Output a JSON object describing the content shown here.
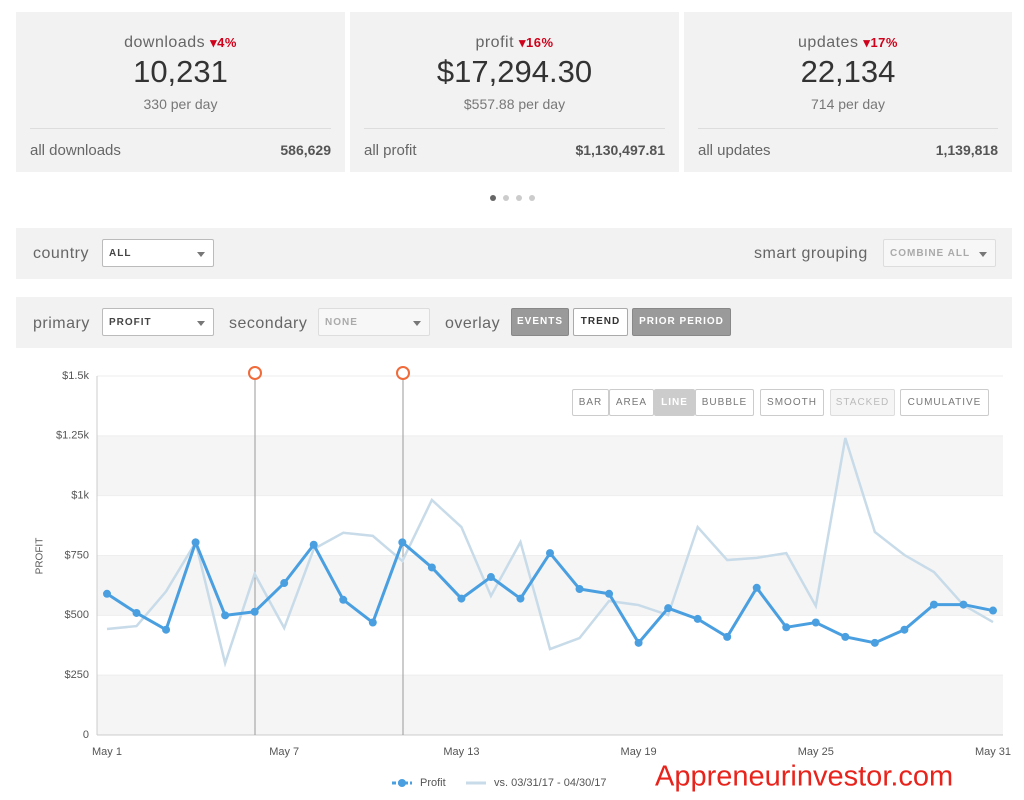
{
  "cards": [
    {
      "title": "downloads",
      "change": "4%",
      "value": "10,231",
      "per_day": "330 per day",
      "total_label": "all downloads",
      "total": "586,629"
    },
    {
      "title": "profit",
      "change": "16%",
      "value": "$17,294.30",
      "per_day": "$557.88 per day",
      "total_label": "all profit",
      "total": "$1,130,497.81"
    },
    {
      "title": "updates",
      "change": "17%",
      "value": "22,134",
      "per_day": "714 per day",
      "total_label": "all updates",
      "total": "1,139,818"
    }
  ],
  "filters": {
    "country_label": "country",
    "country": "ALL",
    "grouping_label": "smart grouping",
    "grouping": "COMBINE ALL"
  },
  "controls": {
    "primary_label": "primary",
    "primary": "PROFIT",
    "secondary_label": "secondary",
    "secondary": "NONE",
    "overlay_label": "overlay",
    "overlay_buttons": [
      "EVENTS",
      "TREND",
      "PRIOR PERIOD"
    ]
  },
  "chart_buttons": [
    "BAR",
    "AREA",
    "LINE",
    "BUBBLE",
    "SMOOTH",
    "STACKED",
    "CUMULATIVE"
  ],
  "watermark": "Appreneurinvestor.com",
  "chart_data": {
    "type": "line",
    "y_label": "PROFIT",
    "categories": [
      "May 1",
      null,
      null,
      null,
      null,
      null,
      "May 7",
      null,
      null,
      null,
      null,
      null,
      "May 13",
      null,
      null,
      null,
      null,
      null,
      "May 19",
      null,
      null,
      null,
      null,
      null,
      "May 25",
      null,
      null,
      null,
      null,
      null,
      "May 31"
    ],
    "series": [
      {
        "name": "Profit",
        "color": "#4a9fe0",
        "values": [
          590,
          510,
          440,
          805,
          500,
          515,
          635,
          795,
          565,
          470,
          805,
          700,
          570,
          660,
          570,
          760,
          610,
          590,
          385,
          530,
          485,
          410,
          615,
          450,
          470,
          410,
          385,
          440,
          545,
          545,
          520
        ]
      },
      {
        "name": "vs. 03/31/17 - 04/30/17",
        "color": "#c8dbe9",
        "values": [
          443,
          455,
          600,
          805,
          300,
          673,
          447,
          777,
          845,
          832,
          727,
          982,
          869,
          581,
          806,
          359,
          405,
          560,
          543,
          501,
          869,
          731,
          740,
          760,
          539,
          1241,
          848,
          752,
          681,
          543,
          472
        ]
      }
    ],
    "ylim": [
      0,
      1500
    ],
    "yticks": [
      0,
      {
        "value": 250,
        "label": "$250"
      },
      {
        "value": 500,
        "label": "$500"
      },
      {
        "value": 750,
        "label": "$750"
      },
      {
        "value": 1000,
        "label": "$1k"
      },
      {
        "value": 1250,
        "label": "$1.25k"
      },
      {
        "value": 1500,
        "label": "$1.5k"
      }
    ]
  }
}
